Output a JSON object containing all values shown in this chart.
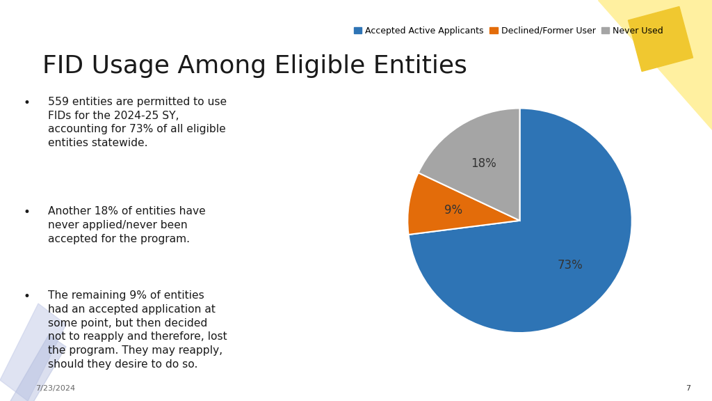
{
  "title": "FID Usage Among Eligible Entities",
  "pie_values": [
    73,
    9,
    18
  ],
  "pie_labels": [
    "73%",
    "9%",
    "18%"
  ],
  "pie_colors": [
    "#2E74B5",
    "#E36C0A",
    "#A5A5A5"
  ],
  "legend_labels": [
    "Accepted Active Applicants",
    "Declined/Former User",
    "Never Used"
  ],
  "legend_colors": [
    "#2E74B5",
    "#E36C0A",
    "#A5A5A5"
  ],
  "bullet_points": [
    "559 entities are permitted to use\nFIDs for the 2024-25 SY,\naccounting for 73% of all eligible\nentities statewide.",
    "Another 18% of entities have\nnever applied/never been\naccepted for the program.",
    "The remaining 9% of entities\nhad an accepted application at\nsome point, but then decided\nnot to reapply and therefore, lost\nthe program. They may reapply,\nshould they desire to do so."
  ],
  "footer_date": "7/23/2024",
  "footer_page": "7",
  "bg_color": "#FFFFFF",
  "title_fontsize": 26,
  "bullet_fontsize": 11.2,
  "legend_fontsize": 9.0,
  "pct_fontsize": 12
}
